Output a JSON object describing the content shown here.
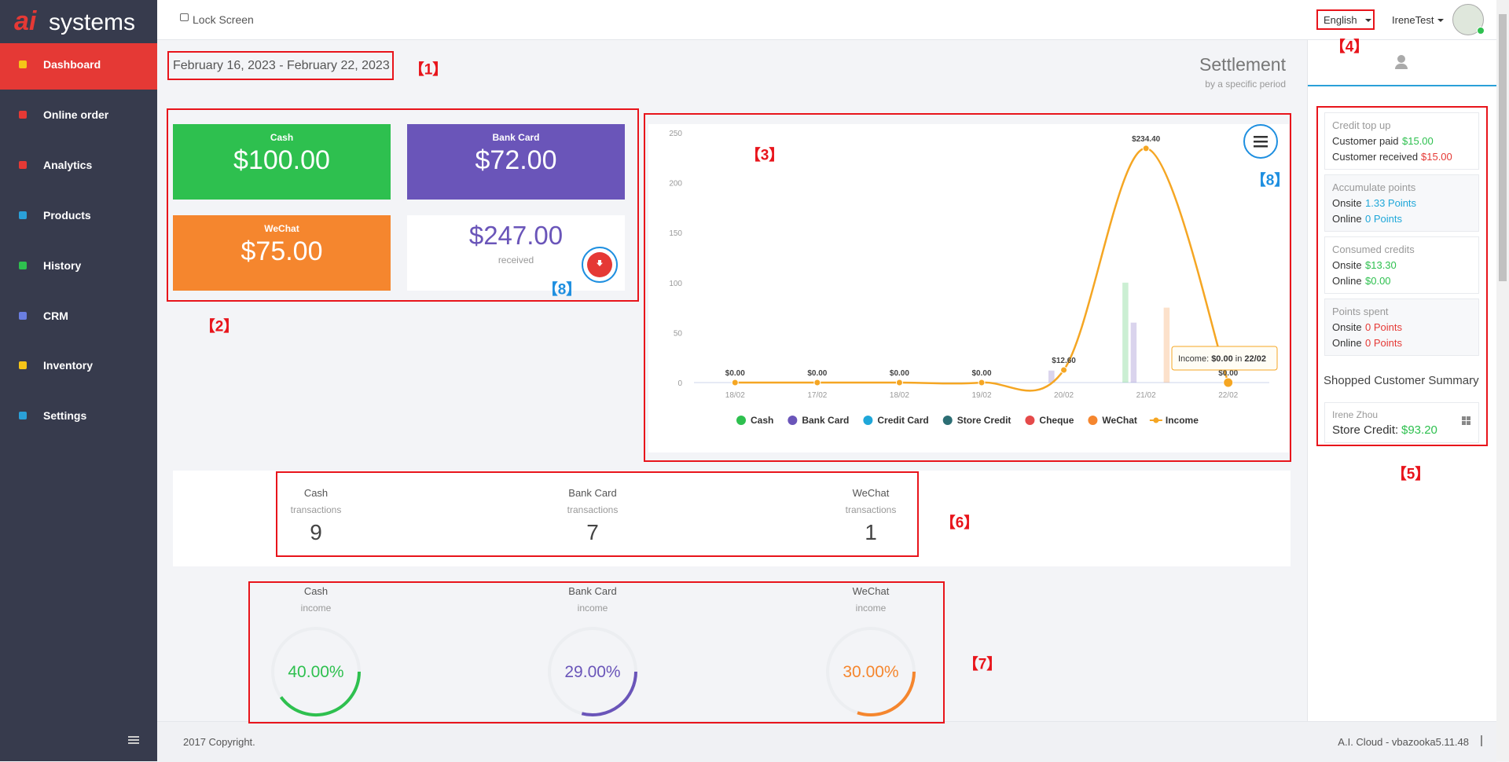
{
  "sidebar": {
    "logo_mark": "ai",
    "logo_text": "systems",
    "menu": [
      "Dashboard",
      "Online order",
      "Analytics",
      "Products",
      "History",
      "CRM",
      "Inventory",
      "Settings"
    ]
  },
  "topbar": {
    "lock": "Lock Screen",
    "language": "English",
    "user": "IreneTest"
  },
  "header": {
    "date_range": "February 16, 2023 - February 22, 2023",
    "title": "Settlement",
    "subtitle": "by a specific period"
  },
  "payment_cards": [
    {
      "name": "Cash",
      "amount": "$100.00"
    },
    {
      "name": "Bank Card",
      "amount": "$72.00"
    },
    {
      "name": "WeChat",
      "amount": "$75.00"
    }
  ],
  "total": {
    "amount": "$247.00",
    "label": "received"
  },
  "chart_data": {
    "type": "bar",
    "categories": [
      "18/02",
      "17/02",
      "18/02",
      "19/02",
      "20/02",
      "21/02",
      "22/02"
    ],
    "series": [
      {
        "name": "Cash",
        "color": "#2ec04f",
        "values": [
          0,
          0,
          0,
          0,
          0,
          100,
          0
        ]
      },
      {
        "name": "Bank Card",
        "color": "#6a55b9",
        "values": [
          0,
          0,
          0,
          0,
          12,
          60,
          0
        ]
      },
      {
        "name": "Credit Card",
        "color": "#1fa7d9",
        "values": [
          0,
          0,
          0,
          0,
          0,
          0,
          0
        ]
      },
      {
        "name": "Store Credit",
        "color": "#2c6e74",
        "values": [
          0,
          0,
          0,
          0,
          0,
          0,
          0
        ]
      },
      {
        "name": "Cheque",
        "color": "#e54a4a",
        "values": [
          0,
          0,
          0,
          0,
          0,
          0,
          0
        ]
      },
      {
        "name": "WeChat",
        "color": "#f5862e",
        "values": [
          0,
          0,
          0,
          0,
          0,
          75,
          0
        ]
      },
      {
        "name": "Income",
        "color": "#f5a623",
        "type": "line",
        "values": [
          0,
          0,
          0,
          0,
          12.6,
          234.4,
          0
        ],
        "value_labels": [
          "$0.00",
          "$0.00",
          "$0.00",
          "$0.00",
          "$12.60",
          "$234.40",
          "$0.00"
        ]
      }
    ],
    "ylim": [
      0,
      250
    ],
    "yticks": [
      0,
      50,
      100,
      150,
      200,
      250
    ],
    "grid": false,
    "tooltip": [
      "Income: ",
      "$0.00",
      " in ",
      "22/02"
    ]
  },
  "transactions": [
    {
      "name": "Cash",
      "label": "transactions",
      "count": 9
    },
    {
      "name": "Bank Card",
      "label": "transactions",
      "count": 7
    },
    {
      "name": "WeChat",
      "label": "transactions",
      "count": 1
    }
  ],
  "income": [
    {
      "name": "Cash",
      "label": "income",
      "value": 40,
      "value_label": "40.00%"
    },
    {
      "name": "Bank Card",
      "label": "income",
      "value": 29,
      "value_label": "29.00%"
    },
    {
      "name": "WeChat",
      "label": "income",
      "value": 30,
      "value_label": "30.00%"
    }
  ],
  "customer_panel": {
    "sections": [
      {
        "title": "Credit top up",
        "rows": [
          {
            "label": "Customer paid",
            "value": "$15.00"
          },
          {
            "label": "Customer received",
            "value": "$15.00"
          }
        ]
      },
      {
        "title": "Accumulate points",
        "rows": [
          {
            "label": "Onsite",
            "value": "1.33 Points"
          },
          {
            "label": "Online",
            "value": "0 Points"
          }
        ]
      },
      {
        "title": "Consumed credits",
        "rows": [
          {
            "label": "Onsite",
            "value": "$13.30"
          },
          {
            "label": "Online",
            "value": "$0.00"
          }
        ]
      },
      {
        "title": "Points spent",
        "rows": [
          {
            "label": "Onsite",
            "value": "0 Points"
          },
          {
            "label": "Online",
            "value": "0 Points"
          }
        ]
      }
    ],
    "summary_title": "Shopped Customer Summary",
    "customer": {
      "name": "Irene Zhou",
      "label": "Store Credit:",
      "value": "$93.20"
    }
  },
  "footer": {
    "copyright": "2017 Copyright.",
    "version": "A.I. Cloud - vbazooka5.11.48"
  },
  "annotations": [
    "【1】",
    "【2】",
    "【3】",
    "【4】",
    "【5】",
    "【6】",
    "【7】",
    "【8】",
    "【8】"
  ]
}
